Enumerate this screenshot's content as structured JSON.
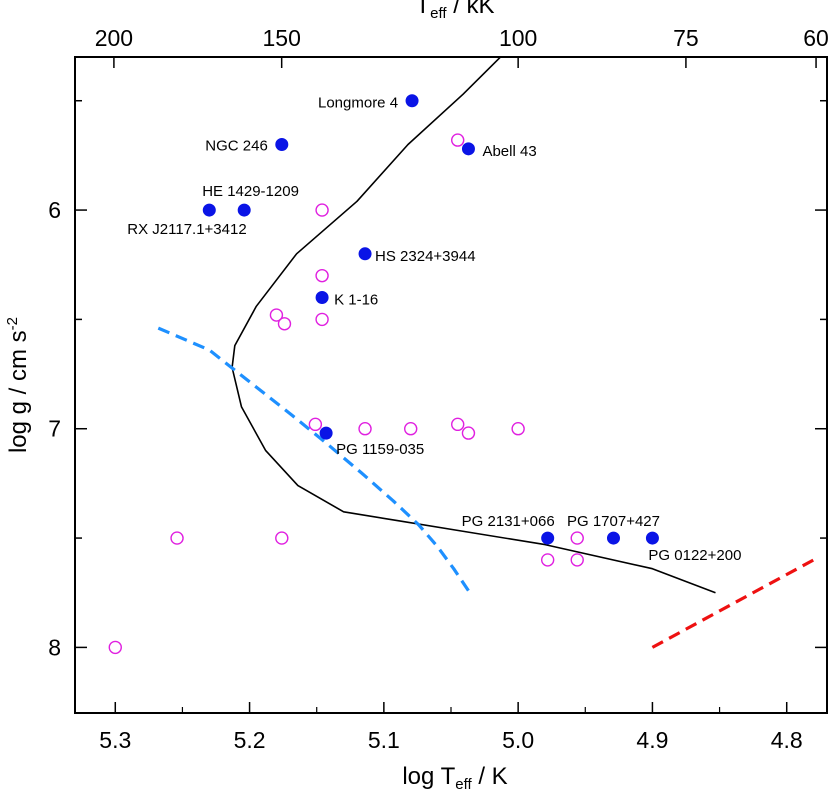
{
  "chart_data": {
    "type": "scatter",
    "title": "",
    "xlabel": {
      "prefix": "log T",
      "sub": "eff",
      "suffix": " / K"
    },
    "ylabel": {
      "prefix": "log g / cm s",
      "sup": "-2"
    },
    "top_xlabel": {
      "prefix": "T",
      "sub": "eff",
      "suffix": " / kK"
    },
    "xlim": [
      5.33,
      4.77
    ],
    "ylim": [
      8.3,
      5.3
    ],
    "x_ticks": [
      {
        "value": 5.3,
        "label": "5.3"
      },
      {
        "value": 5.2,
        "label": "5.2"
      },
      {
        "value": 5.1,
        "label": "5.1"
      },
      {
        "value": 5.0,
        "label": "5.0"
      },
      {
        "value": 4.9,
        "label": "4.9"
      },
      {
        "value": 4.8,
        "label": "4.8"
      }
    ],
    "y_ticks": [
      {
        "value": 6,
        "label": "6"
      },
      {
        "value": 7,
        "label": "7"
      },
      {
        "value": 8,
        "label": "8"
      }
    ],
    "top_ticks": [
      {
        "teff_kK": 200,
        "label": "200"
      },
      {
        "teff_kK": 150,
        "label": "150"
      },
      {
        "teff_kK": 100,
        "label": "100"
      },
      {
        "teff_kK": 75,
        "label": "75"
      },
      {
        "teff_kK": 60,
        "label": "60"
      }
    ],
    "stars": [
      {
        "name": "Longmore 4",
        "logT": 5.079,
        "logg": 5.5,
        "anchor": "end"
      },
      {
        "name": "NGC 246",
        "logT": 5.176,
        "logg": 5.7,
        "anchor": "end"
      },
      {
        "name": "Abell 43",
        "logT": 5.037,
        "logg": 5.72,
        "anchor": "start"
      },
      {
        "name": "HE 1429-1209",
        "logT": 5.204,
        "logg": 6.0,
        "anchor": "start"
      },
      {
        "name": "RX J2117.1+3412",
        "logT": 5.23,
        "logg": 6.0,
        "anchor": "start"
      },
      {
        "name": "HS 2324+3944",
        "logT": 5.114,
        "logg": 6.2,
        "anchor": "start"
      },
      {
        "name": "K 1-16",
        "logT": 5.146,
        "logg": 6.4,
        "anchor": "start"
      },
      {
        "name": "PG 1159-035",
        "logT": 5.143,
        "logg": 7.02,
        "anchor": "start"
      },
      {
        "name": "PG 2131+066",
        "logT": 4.978,
        "logg": 7.5,
        "anchor": "end"
      },
      {
        "name": "PG 1707+427",
        "logT": 4.929,
        "logg": 7.5,
        "anchor": "middle"
      },
      {
        "name": "PG 0122+200",
        "logT": 4.9,
        "logg": 7.5,
        "anchor": "start"
      }
    ],
    "open_points": [
      {
        "logT": 5.045,
        "logg": 5.68
      },
      {
        "logT": 5.146,
        "logg": 6.0
      },
      {
        "logT": 5.146,
        "logg": 6.3
      },
      {
        "logT": 5.18,
        "logg": 6.48
      },
      {
        "logT": 5.174,
        "logg": 6.52
      },
      {
        "logT": 5.146,
        "logg": 6.5
      },
      {
        "logT": 5.151,
        "logg": 6.98
      },
      {
        "logT": 5.114,
        "logg": 7.0
      },
      {
        "logT": 5.08,
        "logg": 7.0
      },
      {
        "logT": 5.045,
        "logg": 6.98
      },
      {
        "logT": 5.037,
        "logg": 7.02
      },
      {
        "logT": 5.0,
        "logg": 7.0
      },
      {
        "logT": 5.254,
        "logg": 7.5
      },
      {
        "logT": 5.176,
        "logg": 7.5
      },
      {
        "logT": 4.956,
        "logg": 7.5
      },
      {
        "logT": 4.978,
        "logg": 7.6
      },
      {
        "logT": 4.956,
        "logg": 7.6
      },
      {
        "logT": 5.3,
        "logg": 8.0
      }
    ],
    "series": [
      {
        "style": "solid",
        "color": "#000000",
        "points": [
          [
            5.0,
            5.22
          ],
          [
            5.041,
            5.47
          ],
          [
            5.082,
            5.7
          ],
          [
            5.12,
            5.96
          ],
          [
            5.165,
            6.2
          ],
          [
            5.195,
            6.44
          ],
          [
            5.211,
            6.62
          ],
          [
            5.213,
            6.72
          ],
          [
            5.206,
            6.9
          ],
          [
            5.188,
            7.1
          ],
          [
            5.164,
            7.26
          ],
          [
            5.13,
            7.38
          ],
          [
            5.09,
            7.42
          ],
          [
            5.04,
            7.47
          ],
          [
            4.98,
            7.53
          ],
          [
            4.9,
            7.64
          ],
          [
            4.853,
            7.75
          ]
        ]
      },
      {
        "style": "dashed",
        "color": "#1e90ff",
        "points": [
          [
            5.268,
            6.54
          ],
          [
            5.23,
            6.64
          ],
          [
            5.197,
            6.8
          ],
          [
            5.168,
            6.94
          ],
          [
            5.144,
            7.06
          ],
          [
            5.117,
            7.2
          ],
          [
            5.093,
            7.33
          ],
          [
            5.074,
            7.44
          ],
          [
            5.06,
            7.54
          ],
          [
            5.048,
            7.64
          ],
          [
            5.036,
            7.75
          ]
        ]
      },
      {
        "style": "dashed",
        "color": "#ee1111",
        "points": [
          [
            4.9,
            8.0
          ],
          [
            4.78,
            7.6
          ]
        ]
      }
    ]
  }
}
